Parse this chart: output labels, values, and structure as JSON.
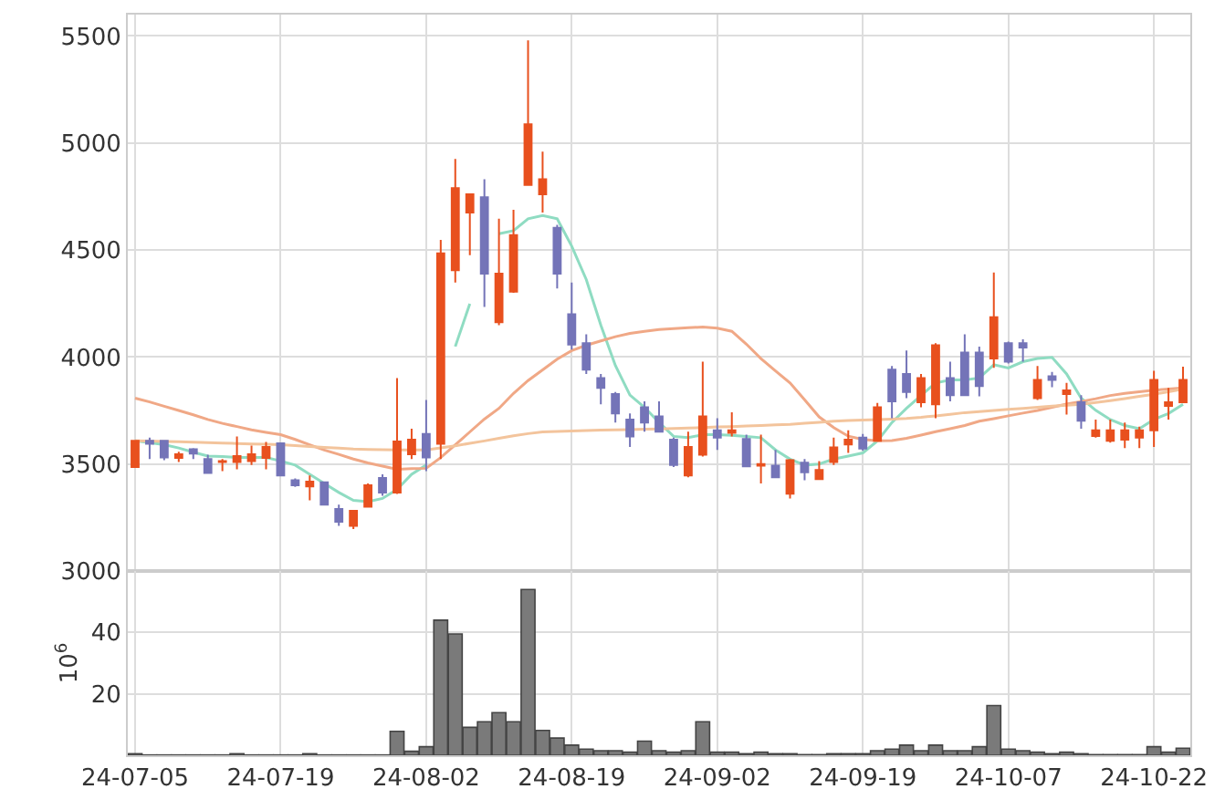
{
  "chart_data": [
    {
      "type": "candlestick",
      "tick_labels": "y",
      "grid": true,
      "categories": [
        null,
        null,
        null,
        null,
        null,
        null,
        null,
        null,
        null,
        null,
        null,
        null,
        null,
        null,
        null,
        null,
        null,
        null,
        null,
        null,
        null,
        null,
        null,
        null,
        null,
        null,
        null,
        null,
        null,
        null,
        null,
        null,
        null,
        null,
        null,
        null,
        null,
        null,
        null,
        null,
        null,
        null,
        null,
        null,
        null,
        null,
        null,
        null,
        null,
        null,
        null,
        null,
        null,
        null,
        null,
        null,
        null,
        null,
        null,
        null,
        null,
        null,
        null,
        null,
        null,
        null,
        null,
        null,
        null,
        null,
        null,
        null,
        null
      ],
      "ylim": [
        3000,
        5600
      ],
      "yticks": [
        3000,
        3500,
        4000,
        4500,
        5000,
        5500
      ],
      "ohlc": [
        [
          3486,
          3610,
          3486,
          3608
        ],
        [
          3608,
          3623,
          3523,
          3595
        ],
        [
          3608,
          3610,
          3518,
          3531
        ],
        [
          3529,
          3557,
          3509,
          3546
        ],
        [
          3569,
          3574,
          3523,
          3549
        ],
        [
          3523,
          3543,
          3455,
          3458
        ],
        [
          3509,
          3523,
          3467,
          3514
        ],
        [
          3509,
          3629,
          3475,
          3537
        ],
        [
          3514,
          3586,
          3495,
          3546
        ],
        [
          3529,
          3603,
          3475,
          3580
        ],
        [
          3597,
          3600,
          3446,
          3446
        ],
        [
          3424,
          3433,
          3393,
          3401
        ],
        [
          3395,
          3446,
          3330,
          3418
        ],
        [
          3415,
          3418,
          3310,
          3310
        ],
        [
          3290,
          3310,
          3211,
          3230
        ],
        [
          3211,
          3281,
          3196,
          3281
        ],
        [
          3301,
          3409,
          3296,
          3401
        ],
        [
          3435,
          3452,
          3352,
          3367
        ],
        [
          3367,
          3902,
          3360,
          3605
        ],
        [
          3546,
          3665,
          3523,
          3614
        ],
        [
          3640,
          3799,
          3467,
          3531
        ],
        [
          3595,
          4547,
          3523,
          4484
        ],
        [
          4405,
          4925,
          4348,
          4789
        ],
        [
          4675,
          4765,
          4476,
          4760
        ],
        [
          4746,
          4831,
          4234,
          4390
        ],
        [
          4163,
          4646,
          4149,
          4390
        ],
        [
          4305,
          4688,
          4300,
          4570
        ],
        [
          4804,
          5480,
          4800,
          5087
        ],
        [
          4760,
          4960,
          4675,
          4831
        ],
        [
          4604,
          4618,
          4320,
          4390
        ],
        [
          4200,
          4348,
          4035,
          4058
        ],
        [
          4064,
          4106,
          3921,
          3941
        ],
        [
          3902,
          3921,
          3779,
          3856
        ],
        [
          3827,
          3836,
          3694,
          3736
        ],
        [
          3708,
          3736,
          3580,
          3629
        ],
        [
          3765,
          3793,
          3651,
          3694
        ],
        [
          3722,
          3793,
          3651,
          3651
        ],
        [
          3614,
          3623,
          3486,
          3495
        ],
        [
          3446,
          3651,
          3438,
          3580
        ],
        [
          3543,
          3978,
          3535,
          3722
        ],
        [
          3657,
          3714,
          3566,
          3623
        ],
        [
          3646,
          3742,
          3629,
          3657
        ],
        [
          3617,
          3637,
          3486,
          3489
        ],
        [
          3492,
          3637,
          3409,
          3500
        ],
        [
          3492,
          3566,
          3438,
          3438
        ],
        [
          3361,
          3523,
          3339,
          3518
        ],
        [
          3506,
          3523,
          3424,
          3461
        ],
        [
          3429,
          3514,
          3429,
          3472
        ],
        [
          3509,
          3623,
          3495,
          3577
        ],
        [
          3591,
          3657,
          3552,
          3614
        ],
        [
          3623,
          3640,
          3563,
          3572
        ],
        [
          3608,
          3785,
          3608,
          3765
        ],
        [
          3941,
          3958,
          3714,
          3793
        ],
        [
          3921,
          4030,
          3808,
          3836
        ],
        [
          3788,
          3921,
          3765,
          3902
        ],
        [
          3779,
          4064,
          3714,
          4055
        ],
        [
          3902,
          3978,
          3793,
          3822
        ],
        [
          4021,
          4106,
          3822,
          3822
        ],
        [
          4021,
          4049,
          3816,
          3864
        ],
        [
          3993,
          4395,
          3949,
          4186
        ],
        [
          4064,
          4072,
          3970,
          3978
        ],
        [
          4064,
          4083,
          3978,
          4044
        ],
        [
          3808,
          3958,
          3799,
          3893
        ],
        [
          3910,
          3930,
          3859,
          3893
        ],
        [
          3827,
          3879,
          3731,
          3844
        ],
        [
          3788,
          3822,
          3665,
          3702
        ],
        [
          3631,
          3708,
          3623,
          3657
        ],
        [
          3608,
          3708,
          3600,
          3657
        ],
        [
          3614,
          3694,
          3574,
          3657
        ],
        [
          3623,
          3674,
          3574,
          3657
        ],
        [
          3657,
          3936,
          3580,
          3893
        ],
        [
          3771,
          3856,
          3708,
          3788
        ],
        [
          3788,
          3955,
          3788,
          3893
        ]
      ],
      "colors": [
        "#e8501e",
        "#7474b8",
        "#7474b8",
        "#e8501e",
        "#7474b8",
        "#7474b8",
        "#e8501e",
        "#e8501e",
        "#e8501e",
        "#e8501e",
        "#7474b8",
        "#7474b8",
        "#e8501e",
        "#7474b8",
        "#7474b8",
        "#e8501e",
        "#e8501e",
        "#7474b8",
        "#e8501e",
        "#e8501e",
        "#7474b8",
        "#e8501e",
        "#e8501e",
        "#e8501e",
        "#7474b8",
        "#e8501e",
        "#e8501e",
        "#e8501e",
        "#e8501e",
        "#7474b8",
        "#7474b8",
        "#7474b8",
        "#7474b8",
        "#7474b8",
        "#7474b8",
        "#7474b8",
        "#7474b8",
        "#7474b8",
        "#e8501e",
        "#e8501e",
        "#7474b8",
        "#e8501e",
        "#7474b8",
        "#e8501e",
        "#7474b8",
        "#e8501e",
        "#7474b8",
        "#e8501e",
        "#e8501e",
        "#e8501e",
        "#7474b8",
        "#e8501e",
        "#7474b8",
        "#7474b8",
        "#e8501e",
        "#e8501e",
        "#7474b8",
        "#7474b8",
        "#7474b8",
        "#e8501e",
        "#7474b8",
        "#7474b8",
        "#e8501e",
        "#7474b8",
        "#e8501e",
        "#7474b8",
        "#e8501e",
        "#e8501e",
        "#e8501e",
        "#e8501e",
        "#e8501e",
        "#e8501e",
        "#e8501e"
      ],
      "series": [
        {
          "type": "line",
          "color": "#8fdcc2",
          "values": [
            3608,
            3600,
            3590,
            3575,
            3555,
            3537,
            3535,
            3531,
            3531,
            3531,
            3514,
            3495,
            3452,
            3409,
            3367,
            3330,
            3324,
            3339,
            3381,
            3452,
            3495,
            null,
            4049,
            4249,
            null,
            4576,
            4590,
            4646,
            4661,
            4646,
            4518,
            4362,
            4149,
            3960,
            3822,
            3765,
            3694,
            3629,
            3623,
            3637,
            3637,
            3634,
            3629,
            3623,
            3566,
            3523,
            3495,
            3500,
            3523,
            3537,
            3552,
            3608,
            3694,
            3760,
            3820,
            3879,
            3893,
            3893,
            3902,
            3964,
            3949,
            3978,
            3993,
            3998,
            3921,
            3808,
            3751,
            3708,
            3680,
            3665,
            3708,
            3736,
            3779
          ]
        },
        {
          "type": "line",
          "color": "#f0a886",
          "values": [
            3808,
            3790,
            3770,
            3750,
            3730,
            3708,
            3690,
            3675,
            3660,
            3648,
            3637,
            3615,
            3590,
            3565,
            3545,
            3523,
            3505,
            3490,
            3475,
            3478,
            3480,
            3530,
            3590,
            3650,
            3710,
            3760,
            3830,
            3890,
            3940,
            3990,
            4030,
            4055,
            4075,
            4095,
            4110,
            4120,
            4128,
            4133,
            4137,
            4140,
            4135,
            4120,
            4060,
            3993,
            3935,
            3879,
            3800,
            3720,
            3670,
            3630,
            3615,
            3608,
            3610,
            3620,
            3635,
            3651,
            3665,
            3680,
            3700,
            3712,
            3725,
            3738,
            3750,
            3765,
            3780,
            3792,
            3805,
            3820,
            3830,
            3838,
            3845,
            3850,
            3856
          ]
        },
        {
          "type": "line",
          "color": "#f3c49c",
          "values": [
            3608,
            3607,
            3605,
            3604,
            3602,
            3600,
            3598,
            3596,
            3594,
            3592,
            3590,
            3586,
            3582,
            3578,
            3574,
            3570,
            3568,
            3567,
            3566,
            3566,
            3566,
            3575,
            3585,
            3597,
            3608,
            3620,
            3632,
            3642,
            3650,
            3652,
            3654,
            3656,
            3658,
            3660,
            3661,
            3663,
            3664,
            3666,
            3668,
            3670,
            3673,
            3675,
            3678,
            3680,
            3683,
            3685,
            3690,
            3695,
            3700,
            3703,
            3705,
            3707,
            3710,
            3713,
            3718,
            3725,
            3732,
            3740,
            3745,
            3750,
            3755,
            3760,
            3765,
            3770,
            3775,
            3779,
            3787,
            3796,
            3806,
            3816,
            3826,
            3838,
            3850
          ]
        }
      ]
    },
    {
      "type": "bar",
      "grid": true,
      "ylabel": "10$^{6}$",
      "color": "#7a7a7a",
      "categories": [
        "24-07-05",
        null,
        null,
        null,
        null,
        null,
        null,
        null,
        null,
        null,
        "24-07-19",
        null,
        null,
        null,
        null,
        null,
        null,
        null,
        null,
        null,
        "24-08-02",
        null,
        null,
        null,
        null,
        null,
        null,
        null,
        null,
        null,
        "24-08-19",
        null,
        null,
        null,
        null,
        null,
        null,
        null,
        null,
        null,
        "24-09-02",
        null,
        null,
        null,
        null,
        null,
        null,
        null,
        null,
        null,
        "24-09-19",
        null,
        null,
        null,
        null,
        null,
        null,
        null,
        null,
        null,
        "24-10-07",
        null,
        null,
        null,
        null,
        null,
        null,
        null,
        null,
        null,
        "24-10-22",
        null,
        null
      ],
      "ylim": [
        0,
        60
      ],
      "yticks": [
        20,
        40
      ],
      "values": [
        0.5,
        0.1,
        0.1,
        0.1,
        0.1,
        0.1,
        0.1,
        0.5,
        0.1,
        0.1,
        0.1,
        0.1,
        0.5,
        0.1,
        0.1,
        0.1,
        0.1,
        0.1,
        7.8,
        1.3,
        2.8,
        44,
        39.5,
        9.1,
        10.9,
        13.9,
        10.9,
        54,
        8.1,
        5.6,
        3.3,
        2.0,
        1.5,
        1.5,
        1.0,
        4.6,
        1.5,
        1.0,
        1.5,
        10.9,
        1.0,
        1.0,
        0.5,
        1.0,
        0.5,
        0.5,
        0.2,
        0.2,
        0.5,
        0.5,
        0.5,
        1.5,
        2.0,
        3.3,
        1.5,
        3.3,
        1.5,
        1.5,
        2.8,
        16.2,
        2.0,
        1.5,
        1.0,
        0.5,
        1.0,
        0.5,
        0.2,
        0.2,
        0.2,
        0.2,
        2.8,
        1.0,
        2.3
      ]
    }
  ]
}
